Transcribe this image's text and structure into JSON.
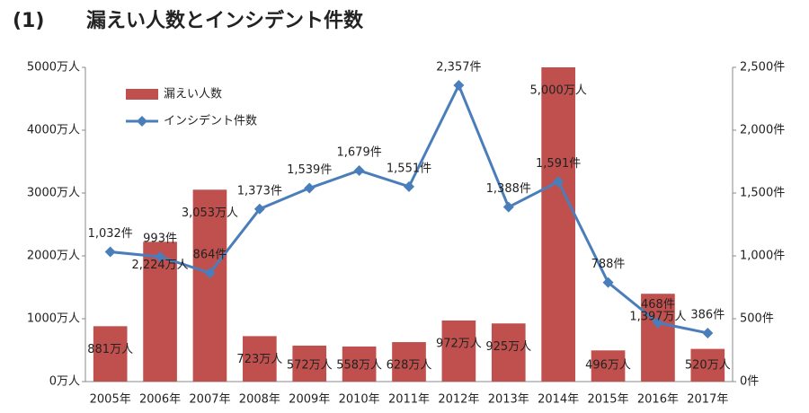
{
  "chart_data": {
    "type": "combo",
    "title_prefix": "(1)",
    "title": "漏えい人数とインシデント件数",
    "categories": [
      "2005年",
      "2006年",
      "2007年",
      "2008年",
      "2009年",
      "2010年",
      "2011年",
      "2012年",
      "2013年",
      "2014年",
      "2015年",
      "2016年",
      "2017年"
    ],
    "series": [
      {
        "name": "漏えい人数",
        "type": "bar",
        "color": "#c0504d",
        "values": [
          881,
          2224,
          3053,
          723,
          572,
          558,
          628,
          972,
          925,
          5000,
          496,
          1397,
          520
        ],
        "value_labels": [
          "881万人",
          "2,224万人",
          "3,053万人",
          "723万人",
          "572万人",
          "558万人",
          "628万人",
          "972万人",
          "925万人",
          "5,000万人",
          "496万人",
          "1,397万人",
          "520万人"
        ]
      },
      {
        "name": "インシデント件数",
        "type": "line",
        "axis": "y2",
        "color": "#4a7ebb",
        "values": [
          1032,
          993,
          864,
          1373,
          1539,
          1679,
          1551,
          2357,
          1388,
          1591,
          788,
          468,
          386
        ],
        "value_labels": [
          "1,032件",
          "993件",
          "864件",
          "1,373件",
          "1,539件",
          "1,679件",
          "1,551件",
          "2,357件",
          "1,388件",
          "1,591件",
          "788件",
          "468件",
          "386件"
        ]
      }
    ],
    "ylim": [
      0,
      5000
    ],
    "yticks": [
      {
        "value": 0,
        "label": "0万人"
      },
      {
        "value": 1000,
        "label": "1000万人"
      },
      {
        "value": 2000,
        "label": "2000万人"
      },
      {
        "value": 3000,
        "label": "3000万人"
      },
      {
        "value": 4000,
        "label": "4000万人"
      },
      {
        "value": 5000,
        "label": "5000万人"
      }
    ],
    "y2lim": [
      0,
      2500
    ],
    "y2ticks": [
      {
        "value": 0,
        "label": "0件"
      },
      {
        "value": 500,
        "label": "500件"
      },
      {
        "value": 1000,
        "label": "1,000件"
      },
      {
        "value": 1500,
        "label": "1,500件"
      },
      {
        "value": 2000,
        "label": "2,000件"
      },
      {
        "value": 2500,
        "label": "2,500件"
      }
    ],
    "grid": false
  }
}
